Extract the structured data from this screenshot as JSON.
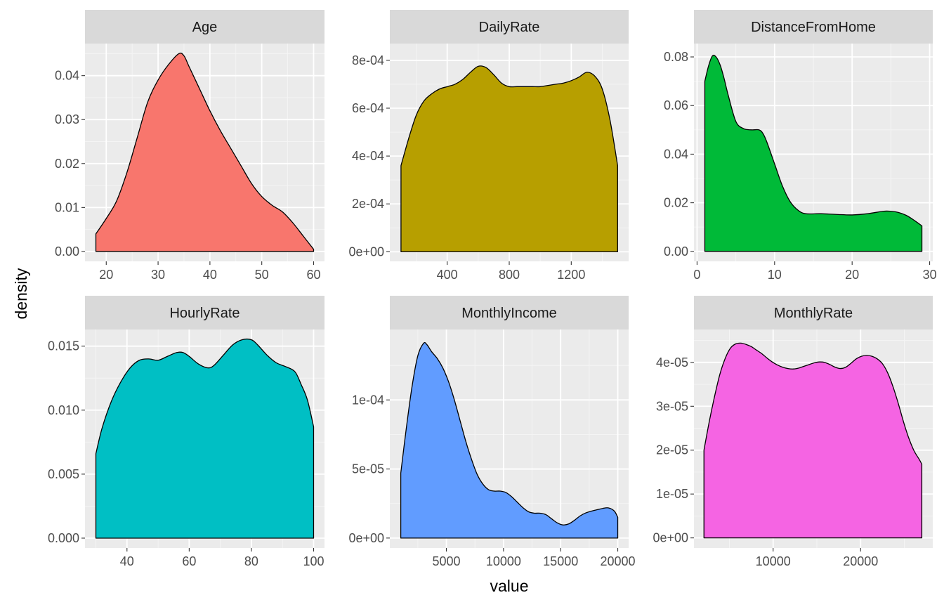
{
  "axis_titles": {
    "x": "value",
    "y": "density"
  },
  "chart_data": [
    {
      "type": "area",
      "title": "Age",
      "fill": "#F8766D",
      "xlim": [
        15.9,
        62.1
      ],
      "ylim": [
        -0.00225,
        0.0473
      ],
      "xticks": [
        20,
        30,
        40,
        50,
        60
      ],
      "yticks": [
        0,
        0.01,
        0.02,
        0.03,
        0.04
      ],
      "ytick_labels": [
        "0.00",
        "0.01",
        "0.02",
        "0.03",
        "0.04"
      ],
      "x": [
        18,
        20,
        22,
        24,
        26,
        28,
        30,
        32,
        34,
        35,
        36,
        38,
        40,
        42,
        44,
        46,
        48,
        50,
        52,
        54,
        56,
        58,
        60
      ],
      "y": [
        0.004,
        0.0075,
        0.0115,
        0.018,
        0.026,
        0.034,
        0.039,
        0.0425,
        0.045,
        0.0445,
        0.042,
        0.037,
        0.032,
        0.0275,
        0.0235,
        0.0195,
        0.0155,
        0.0125,
        0.0105,
        0.009,
        0.0065,
        0.0035,
        0.0005
      ]
    },
    {
      "type": "area",
      "title": "DailyRate",
      "fill": "#B79F00",
      "xlim": [
        30,
        1570
      ],
      "ylim": [
        -4e-05,
        0.00087
      ],
      "xticks": [
        400,
        800,
        1200
      ],
      "yticks": [
        0,
        0.0002,
        0.0004,
        0.0006,
        0.0008
      ],
      "ytick_labels": [
        "0e+00",
        "2e-04",
        "4e-04",
        "6e-04",
        "8e-04"
      ],
      "x": [
        102,
        150,
        200,
        250,
        300,
        350,
        400,
        450,
        500,
        550,
        600,
        650,
        700,
        750,
        800,
        850,
        900,
        950,
        1000,
        1050,
        1100,
        1150,
        1200,
        1250,
        1300,
        1350,
        1400,
        1450,
        1499
      ],
      "y": [
        0.00036,
        0.00047,
        0.00057,
        0.00063,
        0.00066,
        0.00068,
        0.00069,
        0.0007,
        0.00072,
        0.00075,
        0.000775,
        0.00077,
        0.00074,
        0.000705,
        0.00069,
        0.00069,
        0.00069,
        0.00069,
        0.00069,
        0.000695,
        0.0007,
        0.000705,
        0.000715,
        0.00073,
        0.00075,
        0.000735,
        0.00068,
        0.00055,
        0.00036
      ]
    },
    {
      "type": "area",
      "title": "DistanceFromHome",
      "fill": "#00BA38",
      "xlim": [
        -0.4,
        30.4
      ],
      "ylim": [
        -0.0041,
        0.0855
      ],
      "xticks": [
        0,
        10,
        20,
        30
      ],
      "yticks": [
        0,
        0.02,
        0.04,
        0.06,
        0.08
      ],
      "ytick_labels": [
        "0.00",
        "0.02",
        "0.04",
        "0.06",
        "0.08"
      ],
      "x": [
        1,
        1.5,
        2,
        2.5,
        3,
        3.5,
        4,
        5,
        6,
        7,
        8,
        8.5,
        9,
        10,
        11,
        12,
        13,
        14,
        16,
        18,
        20,
        22,
        24,
        25,
        26,
        27,
        28,
        29
      ],
      "y": [
        0.07,
        0.0765,
        0.0805,
        0.0798,
        0.0765,
        0.071,
        0.0645,
        0.0535,
        0.0505,
        0.05,
        0.05,
        0.0485,
        0.045,
        0.036,
        0.027,
        0.0205,
        0.017,
        0.0155,
        0.0155,
        0.0152,
        0.015,
        0.0155,
        0.0165,
        0.0165,
        0.016,
        0.0148,
        0.0128,
        0.0105
      ]
    },
    {
      "type": "area",
      "title": "HourlyRate",
      "fill": "#00BFC4",
      "xlim": [
        26.5,
        103.5
      ],
      "ylim": [
        -0.00077,
        0.0163
      ],
      "xticks": [
        40,
        60,
        80,
        100
      ],
      "yticks": [
        0,
        0.005,
        0.01,
        0.015
      ],
      "ytick_labels": [
        "0.000",
        "0.005",
        "0.010",
        "0.015"
      ],
      "x": [
        30,
        32,
        35,
        38,
        41,
        44,
        47,
        50,
        53,
        56,
        58,
        60,
        63,
        66,
        68,
        71,
        74,
        77,
        80,
        82,
        85,
        88,
        91,
        94,
        96,
        98,
        100
      ],
      "y": [
        0.0066,
        0.0086,
        0.0107,
        0.0122,
        0.0133,
        0.0139,
        0.014,
        0.0139,
        0.0142,
        0.0145,
        0.0145,
        0.0142,
        0.0136,
        0.0133,
        0.0135,
        0.0143,
        0.0151,
        0.0155,
        0.0155,
        0.0151,
        0.0143,
        0.0137,
        0.0134,
        0.013,
        0.012,
        0.0108,
        0.0087
      ]
    },
    {
      "type": "area",
      "title": "MonthlyIncome",
      "fill": "#619CFF",
      "xlim": [
        50,
        20950
      ],
      "ylim": [
        -7.2e-06,
        0.000151
      ],
      "xticks": [
        5000,
        10000,
        15000,
        20000
      ],
      "yticks": [
        0,
        5e-05,
        0.0001
      ],
      "ytick_labels": [
        "0e+00",
        "5e-05",
        "1e-04"
      ],
      "x": [
        1009,
        1500,
        2000,
        2500,
        3000,
        3300,
        3700,
        4200,
        4700,
        5200,
        5700,
        6200,
        6700,
        7200,
        7700,
        8200,
        8700,
        9200,
        9700,
        10200,
        10700,
        11200,
        11700,
        12200,
        12700,
        13200,
        13700,
        14200,
        14700,
        15200,
        15700,
        16200,
        16700,
        17200,
        17700,
        18200,
        18700,
        19200,
        19700,
        19999
      ],
      "y": [
        4.7e-05,
        8e-05,
        0.00011,
        0.000132,
        0.000141,
        0.00014,
        0.000135,
        0.00013,
        0.000123,
        0.000113,
        0.0001,
        8.5e-05,
        7e-05,
        5.7e-05,
        4.6e-05,
        3.9e-05,
        3.5e-05,
        3.4e-05,
        3.4e-05,
        3.3e-05,
        3e-05,
        2.6e-05,
        2.2e-05,
        1.9e-05,
        1.8e-05,
        1.8e-05,
        1.7e-05,
        1.4e-05,
        1.1e-05,
        9.5e-06,
        1.02e-05,
        1.28e-05,
        1.6e-05,
        1.82e-05,
        1.95e-05,
        2.05e-05,
        2.15e-05,
        2.18e-05,
        1.95e-05,
        1.5e-05
      ]
    },
    {
      "type": "area",
      "title": "MonthlyRate",
      "fill": "#F564E3",
      "xlim": [
        950,
        28250
      ],
      "ylim": [
        -2.3e-06,
        4.75e-05
      ],
      "xticks": [
        10000,
        20000
      ],
      "yticks": [
        0,
        1e-05,
        2e-05,
        3e-05,
        4e-05
      ],
      "ytick_labels": [
        "0e+00",
        "1e-05",
        "2e-05",
        "3e-05",
        "4e-05"
      ],
      "x": [
        2094,
        2700,
        3300,
        3900,
        4500,
        5100,
        5700,
        6300,
        6900,
        7500,
        8100,
        8700,
        9300,
        9900,
        10500,
        11100,
        11700,
        12300,
        12900,
        13500,
        14100,
        14700,
        15300,
        15900,
        16500,
        17100,
        17700,
        18300,
        18900,
        19500,
        20100,
        20700,
        21300,
        21900,
        22500,
        23100,
        23700,
        24300,
        24900,
        25500,
        26100,
        26700,
        26999
      ],
      "y": [
        2e-05,
        2.65e-05,
        3.22e-05,
        3.72e-05,
        4.08e-05,
        4.32e-05,
        4.42e-05,
        4.44e-05,
        4.41e-05,
        4.36e-05,
        4.28e-05,
        4.2e-05,
        4.1e-05,
        4.01e-05,
        3.94e-05,
        3.89e-05,
        3.86e-05,
        3.85e-05,
        3.87e-05,
        3.91e-05,
        3.95e-05,
        3.99e-05,
        4.01e-05,
        4e-05,
        3.95e-05,
        3.89e-05,
        3.86e-05,
        3.89e-05,
        3.98e-05,
        4.08e-05,
        4.14e-05,
        4.16e-05,
        4.14e-05,
        4.08e-05,
        3.97e-05,
        3.76e-05,
        3.45e-05,
        3.07e-05,
        2.65e-05,
        2.28e-05,
        1.99e-05,
        1.79e-05,
        1.68e-05
      ]
    }
  ]
}
